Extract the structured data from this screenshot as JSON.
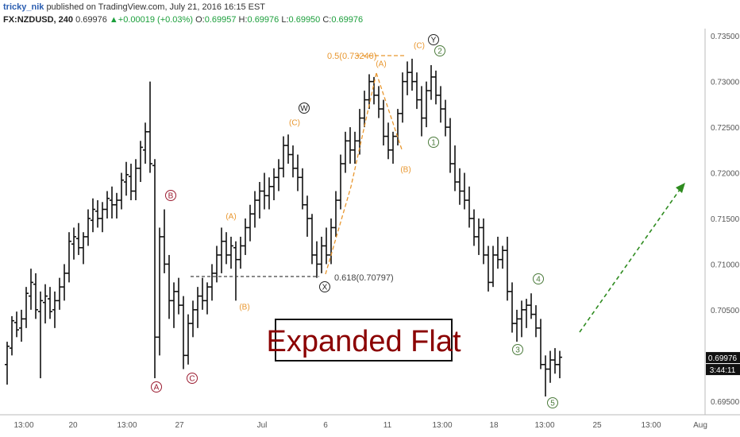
{
  "header": {
    "author": "tricky_nik",
    "published": "published on TradingView.com, July 21, 2016 16:15 EST",
    "symbol": "FX:NZDUSD, 240",
    "last": "0.69976",
    "change": "▲+0.00019 (+0.03%)",
    "o_label": "O:",
    "o_value": "0.69957",
    "h_label": "H:",
    "h_value": "0.69976",
    "l_label": "L:",
    "l_value": "0.69950",
    "c_label": "C:",
    "c_value": "0.69976"
  },
  "chart_data": {
    "type": "bar",
    "title": "Expanded Flat",
    "y_ticks": [
      "0.73500",
      "0.73000",
      "0.72500",
      "0.72000",
      "0.71500",
      "0.71000",
      "0.70500",
      "0.70000",
      "0.69500"
    ],
    "y_tick_values": [
      0.735,
      0.73,
      0.725,
      0.72,
      0.715,
      0.71,
      0.705,
      0.7,
      0.695
    ],
    "ylim": [
      0.6935,
      0.7358
    ],
    "x_ticks": [
      "13:00",
      "20",
      "13:00",
      "27",
      "Jul",
      "6",
      "11",
      "13:00",
      "18",
      "13:00",
      "25",
      "13:00",
      "Aug"
    ],
    "current_price": "0.69976",
    "countdown": "3:44:11",
    "colors": {
      "bars": "#111111",
      "orange": "#e8962e",
      "red_wave": "#9b1b30",
      "green_wave": "#4a7a3a",
      "black_wave": "#222222",
      "arrow": "#2e8b1f",
      "title": "#8b0000"
    },
    "fib_labels": [
      {
        "text": "0.5(0.73240)",
        "price": 0.7324
      },
      {
        "text": "0.618(0.70797)",
        "price": 0.70797
      }
    ],
    "wave_labels": [
      {
        "text": "A",
        "style": "circle",
        "color": "red_wave"
      },
      {
        "text": "B",
        "style": "circle",
        "color": "red_wave"
      },
      {
        "text": "C",
        "style": "circle",
        "color": "red_wave"
      },
      {
        "text": "(A)",
        "style": "plain",
        "color": "orange"
      },
      {
        "text": "(B)",
        "style": "plain",
        "color": "orange"
      },
      {
        "text": "(C)",
        "style": "plain",
        "color": "orange"
      },
      {
        "text": "W",
        "style": "circle",
        "color": "black_wave"
      },
      {
        "text": "X",
        "style": "circle",
        "color": "black_wave"
      },
      {
        "text": "(A)",
        "style": "plain",
        "color": "orange"
      },
      {
        "text": "(B)",
        "style": "plain",
        "color": "orange"
      },
      {
        "text": "(C)",
        "style": "plain",
        "color": "orange"
      },
      {
        "text": "Y",
        "style": "circle",
        "color": "black_wave"
      },
      {
        "text": "1",
        "style": "circle",
        "color": "green_wave"
      },
      {
        "text": "2",
        "style": "circle",
        "color": "green_wave"
      },
      {
        "text": "3",
        "style": "circle",
        "color": "green_wave"
      },
      {
        "text": "4",
        "style": "circle",
        "color": "green_wave"
      },
      {
        "text": "5",
        "style": "circle",
        "color": "green_wave"
      }
    ],
    "ohlc": [
      [
        0.699,
        0.7015,
        0.6968,
        0.701
      ],
      [
        0.7008,
        0.7043,
        0.7,
        0.7038
      ],
      [
        0.7036,
        0.7048,
        0.702,
        0.7028
      ],
      [
        0.703,
        0.705,
        0.7015,
        0.704
      ],
      [
        0.704,
        0.7075,
        0.703,
        0.7068
      ],
      [
        0.7065,
        0.7095,
        0.705,
        0.708
      ],
      [
        0.7078,
        0.709,
        0.704,
        0.705
      ],
      [
        0.7048,
        0.707,
        0.6975,
        0.706
      ],
      [
        0.7058,
        0.7078,
        0.7035,
        0.7065
      ],
      [
        0.7062,
        0.7075,
        0.704,
        0.7048
      ],
      [
        0.705,
        0.707,
        0.703,
        0.706
      ],
      [
        0.706,
        0.7085,
        0.705,
        0.7075
      ],
      [
        0.7075,
        0.71,
        0.706,
        0.709
      ],
      [
        0.709,
        0.7135,
        0.708,
        0.7125
      ],
      [
        0.7122,
        0.714,
        0.7105,
        0.713
      ],
      [
        0.7128,
        0.7145,
        0.711,
        0.7118
      ],
      [
        0.7118,
        0.7135,
        0.71,
        0.713
      ],
      [
        0.713,
        0.716,
        0.712,
        0.715
      ],
      [
        0.7148,
        0.7172,
        0.7135,
        0.716
      ],
      [
        0.7158,
        0.717,
        0.714,
        0.715
      ],
      [
        0.715,
        0.7168,
        0.7135,
        0.716
      ],
      [
        0.716,
        0.718,
        0.715,
        0.7172
      ],
      [
        0.717,
        0.7185,
        0.715,
        0.7165
      ],
      [
        0.7165,
        0.7178,
        0.715,
        0.717
      ],
      [
        0.717,
        0.72,
        0.716,
        0.7192
      ],
      [
        0.719,
        0.7212,
        0.7175,
        0.7198
      ],
      [
        0.7196,
        0.721,
        0.717,
        0.718
      ],
      [
        0.718,
        0.7215,
        0.717,
        0.7205
      ],
      [
        0.7205,
        0.7235,
        0.719,
        0.7228
      ],
      [
        0.7225,
        0.7255,
        0.721,
        0.7245
      ],
      [
        0.7245,
        0.73,
        0.72,
        0.721
      ],
      [
        0.7208,
        0.7215,
        0.6975,
        0.702
      ],
      [
        0.702,
        0.714,
        0.7,
        0.713
      ],
      [
        0.713,
        0.716,
        0.709,
        0.71
      ],
      [
        0.71,
        0.711,
        0.704,
        0.706
      ],
      [
        0.706,
        0.708,
        0.703,
        0.707
      ],
      [
        0.707,
        0.7085,
        0.7045,
        0.7055
      ],
      [
        0.7055,
        0.7065,
        0.6985,
        0.7
      ],
      [
        0.7,
        0.7045,
        0.699,
        0.7035
      ],
      [
        0.7035,
        0.706,
        0.702,
        0.705
      ],
      [
        0.705,
        0.7075,
        0.703,
        0.7065
      ],
      [
        0.7065,
        0.7085,
        0.705,
        0.706
      ],
      [
        0.706,
        0.708,
        0.7045,
        0.7075
      ],
      [
        0.7075,
        0.71,
        0.706,
        0.709
      ],
      [
        0.709,
        0.712,
        0.708,
        0.711
      ],
      [
        0.711,
        0.714,
        0.709,
        0.7125
      ],
      [
        0.7125,
        0.7135,
        0.71,
        0.711
      ],
      [
        0.711,
        0.713,
        0.7095,
        0.712
      ],
      [
        0.7118,
        0.7125,
        0.706,
        0.7105
      ],
      [
        0.7105,
        0.713,
        0.7095,
        0.712
      ],
      [
        0.712,
        0.715,
        0.711,
        0.714
      ],
      [
        0.714,
        0.7165,
        0.7125,
        0.7155
      ],
      [
        0.7155,
        0.718,
        0.714,
        0.717
      ],
      [
        0.717,
        0.719,
        0.715,
        0.718
      ],
      [
        0.718,
        0.72,
        0.716,
        0.7175
      ],
      [
        0.7175,
        0.7195,
        0.716,
        0.7185
      ],
      [
        0.7185,
        0.7205,
        0.717,
        0.7195
      ],
      [
        0.7195,
        0.7215,
        0.718,
        0.7205
      ],
      [
        0.7205,
        0.724,
        0.7195,
        0.723
      ],
      [
        0.723,
        0.7242,
        0.721,
        0.722
      ],
      [
        0.722,
        0.723,
        0.7195,
        0.7205
      ],
      [
        0.7205,
        0.722,
        0.718,
        0.7195
      ],
      [
        0.7195,
        0.7205,
        0.716,
        0.7165
      ],
      [
        0.7165,
        0.7175,
        0.713,
        0.715
      ],
      [
        0.715,
        0.7155,
        0.71,
        0.711
      ],
      [
        0.711,
        0.7125,
        0.7085,
        0.71
      ],
      [
        0.71,
        0.713,
        0.709,
        0.712
      ],
      [
        0.712,
        0.714,
        0.71,
        0.711
      ],
      [
        0.711,
        0.715,
        0.71,
        0.714
      ],
      [
        0.714,
        0.718,
        0.713,
        0.717
      ],
      [
        0.717,
        0.722,
        0.716,
        0.721
      ],
      [
        0.721,
        0.7245,
        0.72,
        0.7235
      ],
      [
        0.7235,
        0.725,
        0.721,
        0.7225
      ],
      [
        0.7225,
        0.7245,
        0.721,
        0.7235
      ],
      [
        0.7235,
        0.727,
        0.722,
        0.726
      ],
      [
        0.726,
        0.729,
        0.725,
        0.728
      ],
      [
        0.728,
        0.7308,
        0.727,
        0.73
      ],
      [
        0.73,
        0.7305,
        0.7275,
        0.7285
      ],
      [
        0.7285,
        0.7295,
        0.726,
        0.727
      ],
      [
        0.727,
        0.728,
        0.723,
        0.724
      ],
      [
        0.724,
        0.7255,
        0.7215,
        0.7225
      ],
      [
        0.7225,
        0.7245,
        0.721,
        0.724
      ],
      [
        0.724,
        0.727,
        0.723,
        0.7265
      ],
      [
        0.7265,
        0.731,
        0.7255,
        0.73
      ],
      [
        0.73,
        0.7322,
        0.7285,
        0.731
      ],
      [
        0.731,
        0.7325,
        0.729,
        0.73
      ],
      [
        0.73,
        0.731,
        0.727,
        0.728
      ],
      [
        0.728,
        0.7295,
        0.724,
        0.726
      ],
      [
        0.726,
        0.73,
        0.725,
        0.729
      ],
      [
        0.729,
        0.7318,
        0.728,
        0.7305
      ],
      [
        0.7305,
        0.7312,
        0.7275,
        0.7285
      ],
      [
        0.7285,
        0.7295,
        0.7255,
        0.727
      ],
      [
        0.727,
        0.728,
        0.724,
        0.725
      ],
      [
        0.725,
        0.726,
        0.72,
        0.721
      ],
      [
        0.721,
        0.723,
        0.718,
        0.719
      ],
      [
        0.719,
        0.7205,
        0.7165,
        0.718
      ],
      [
        0.718,
        0.72,
        0.716,
        0.717
      ],
      [
        0.717,
        0.7185,
        0.714,
        0.715
      ],
      [
        0.715,
        0.716,
        0.712,
        0.713
      ],
      [
        0.713,
        0.715,
        0.711,
        0.714
      ],
      [
        0.714,
        0.715,
        0.71,
        0.711
      ],
      [
        0.711,
        0.712,
        0.707,
        0.708
      ],
      [
        0.708,
        0.712,
        0.7075,
        0.711
      ],
      [
        0.711,
        0.713,
        0.7095,
        0.7105
      ],
      [
        0.7105,
        0.712,
        0.7095,
        0.7115
      ],
      [
        0.7115,
        0.713,
        0.706,
        0.707
      ],
      [
        0.707,
        0.708,
        0.7025,
        0.7035
      ],
      [
        0.7035,
        0.705,
        0.7015,
        0.704
      ],
      [
        0.704,
        0.706,
        0.702,
        0.705
      ],
      [
        0.705,
        0.7062,
        0.703,
        0.7055
      ],
      [
        0.7055,
        0.7068,
        0.704,
        0.7045
      ],
      [
        0.7045,
        0.7055,
        0.702,
        0.703
      ],
      [
        0.703,
        0.704,
        0.6985,
        0.699
      ],
      [
        0.699,
        0.7,
        0.6955,
        0.6985
      ],
      [
        0.6985,
        0.7005,
        0.697,
        0.6995
      ],
      [
        0.6995,
        0.7008,
        0.698,
        0.699
      ],
      [
        0.699,
        0.7005,
        0.6975,
        0.6998
      ]
    ]
  }
}
